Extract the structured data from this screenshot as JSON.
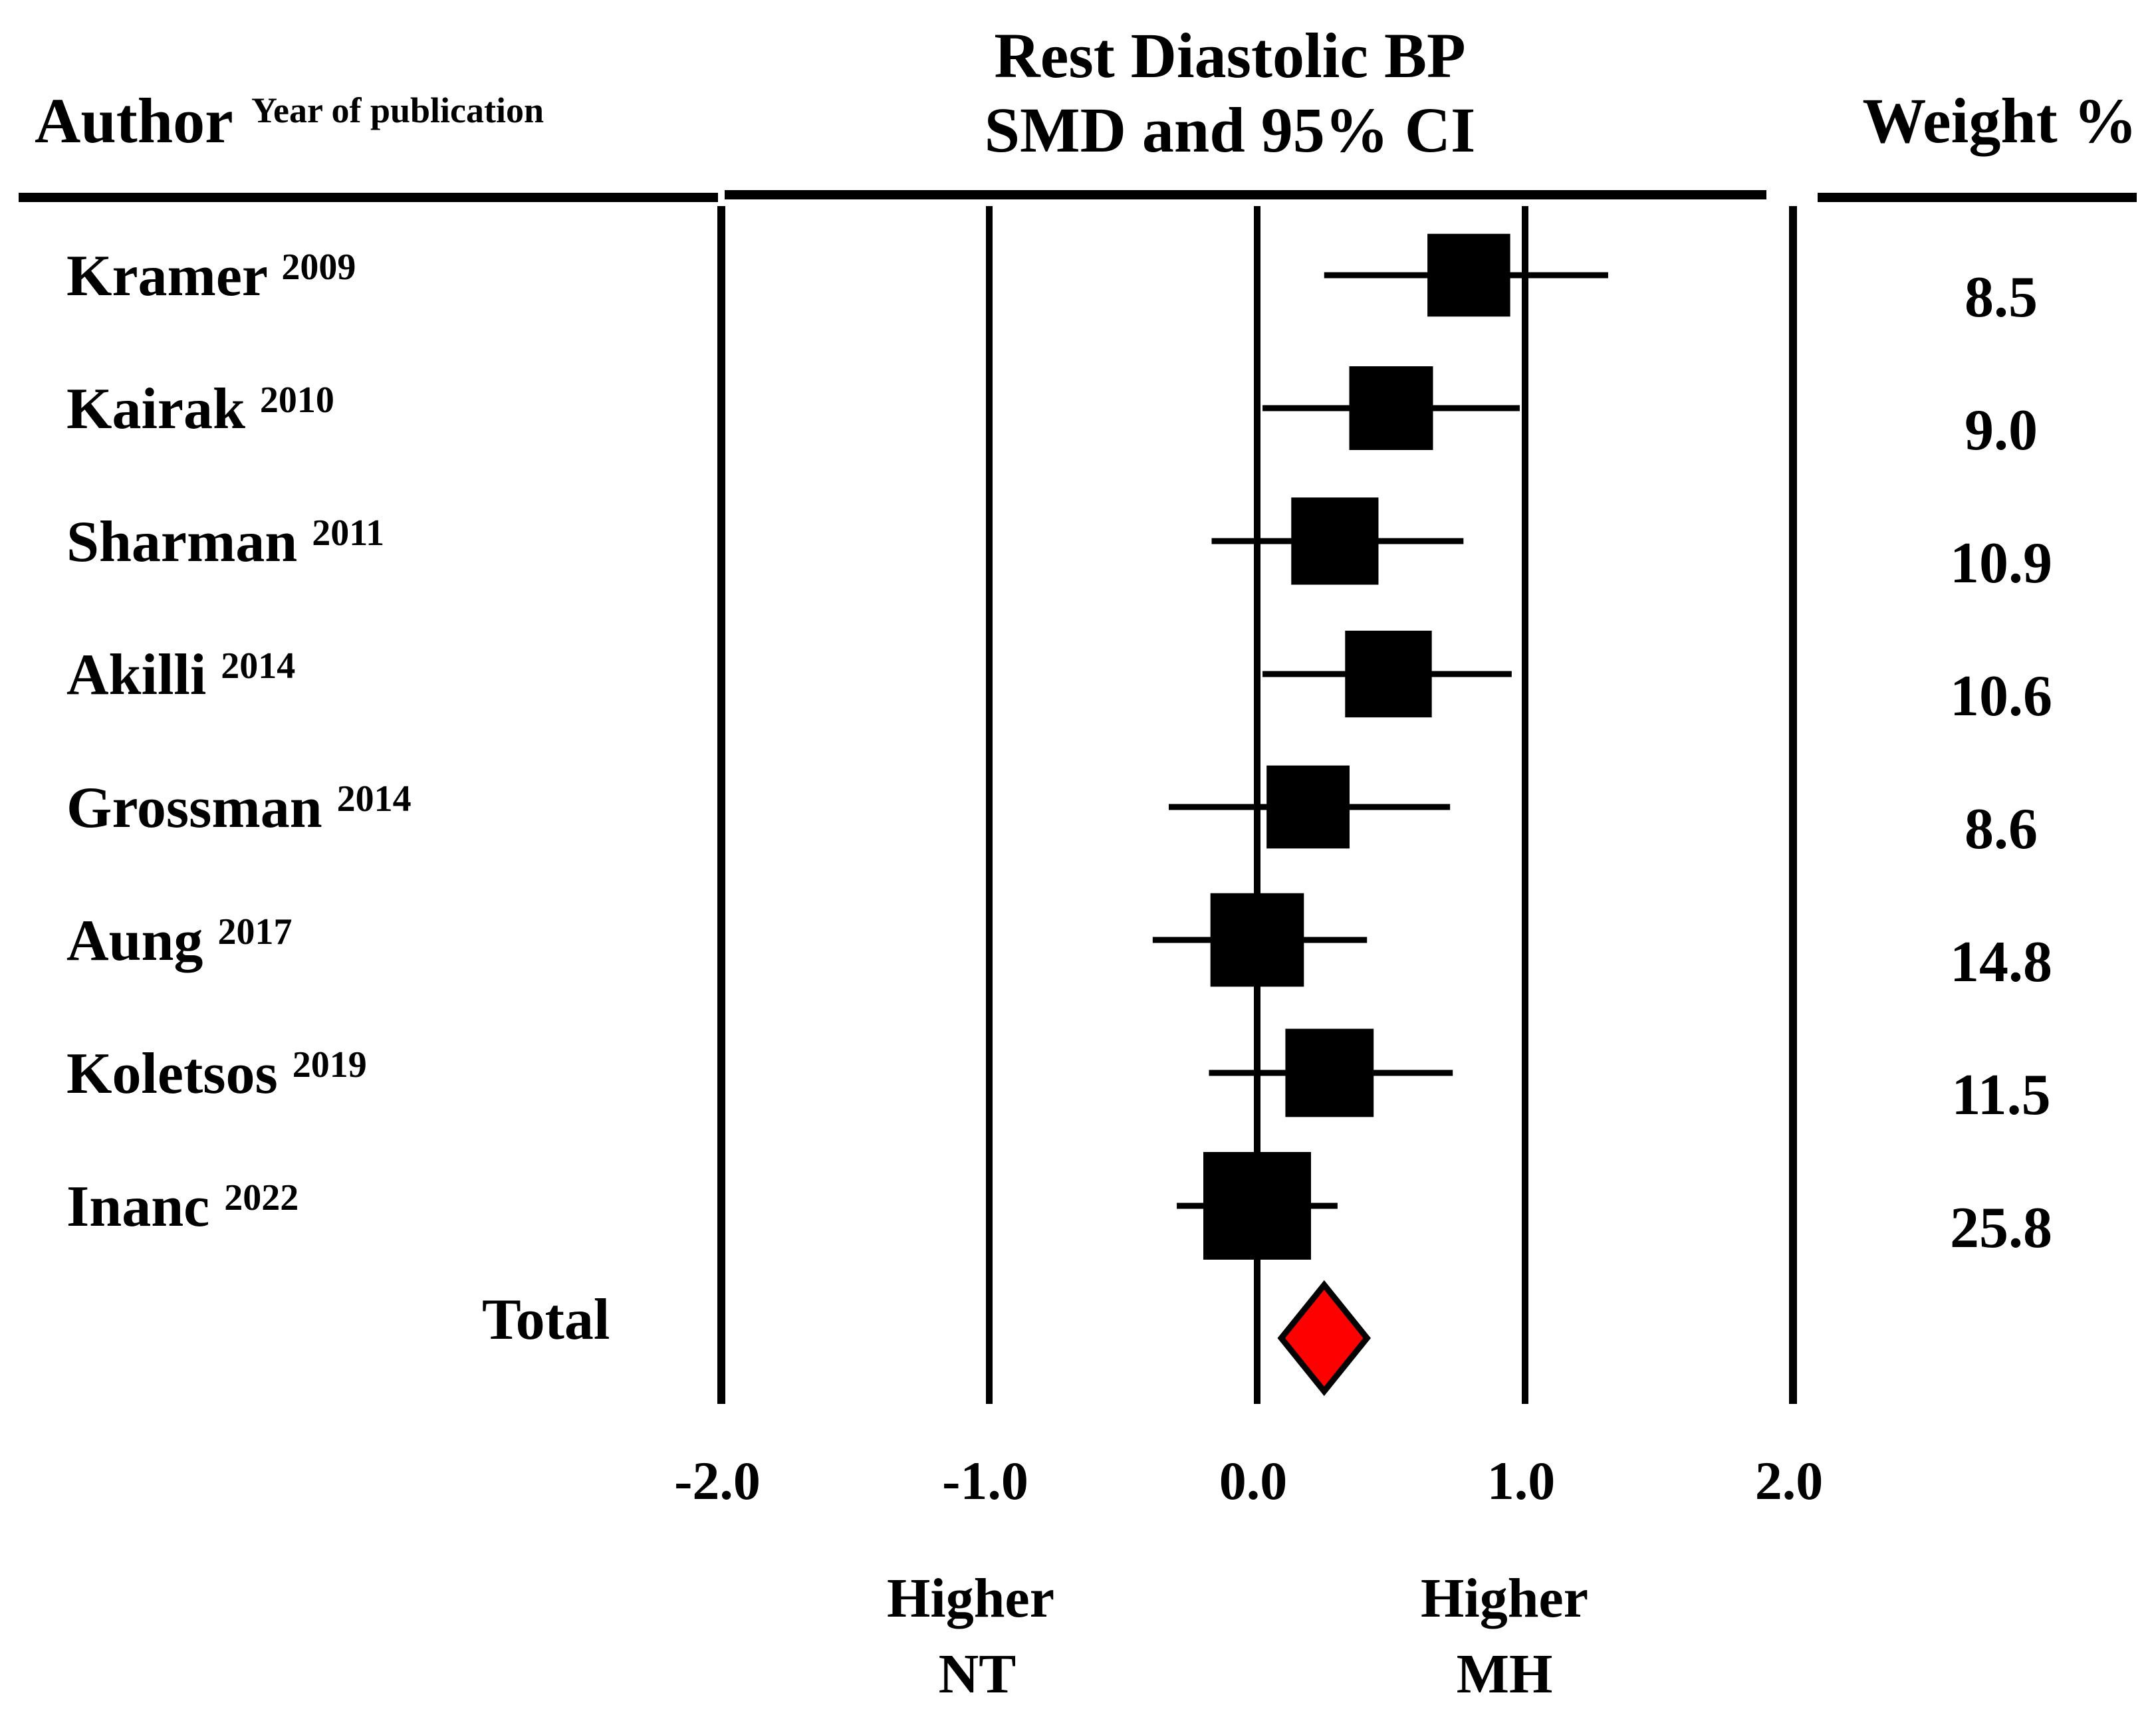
{
  "chart_data": {
    "type": "forest",
    "title_line1": "Rest Diastolic BP",
    "title_line2": "SMD and 95% CI",
    "author_header": "Author",
    "year_header": "Year of publication",
    "weight_header": "Weight %",
    "xlim": [
      -2.0,
      2.0
    ],
    "ticks": [
      -2.0,
      -1.0,
      0.0,
      1.0,
      2.0
    ],
    "tick_labels": [
      "-2.0",
      "-1.0",
      "0.0",
      "1.0",
      "2.0"
    ],
    "studies": [
      {
        "author": "Kramer",
        "year": "2009",
        "smd": 0.79,
        "lower": 0.25,
        "upper": 1.31,
        "weight": "8.5"
      },
      {
        "author": "Kairak",
        "year": "2010",
        "smd": 0.5,
        "lower": 0.02,
        "upper": 0.98,
        "weight": "9.0"
      },
      {
        "author": "Sharman",
        "year": "2011",
        "smd": 0.29,
        "lower": -0.17,
        "upper": 0.77,
        "weight": "10.9"
      },
      {
        "author": "Akilli",
        "year": "2014",
        "smd": 0.49,
        "lower": 0.02,
        "upper": 0.95,
        "weight": "10.6"
      },
      {
        "author": "Grossman",
        "year": "2014",
        "smd": 0.19,
        "lower": -0.33,
        "upper": 0.72,
        "weight": "8.6"
      },
      {
        "author": "Aung",
        "year": "2017",
        "smd": 0.0,
        "lower": -0.39,
        "upper": 0.41,
        "weight": "14.8"
      },
      {
        "author": "Koletsos",
        "year": "2019",
        "smd": 0.27,
        "lower": -0.18,
        "upper": 0.73,
        "weight": "11.5"
      },
      {
        "author": "Inanc",
        "year": "2022",
        "smd": 0.0,
        "lower": -0.3,
        "upper": 0.3,
        "weight": "25.8"
      }
    ],
    "total": {
      "label": "Total",
      "smd": 0.25,
      "lower": 0.09,
      "upper": 0.41,
      "color": "#ff0000"
    },
    "favors_left": [
      "Higher",
      "NT"
    ],
    "favors_right": [
      "Higher",
      "MH"
    ]
  }
}
